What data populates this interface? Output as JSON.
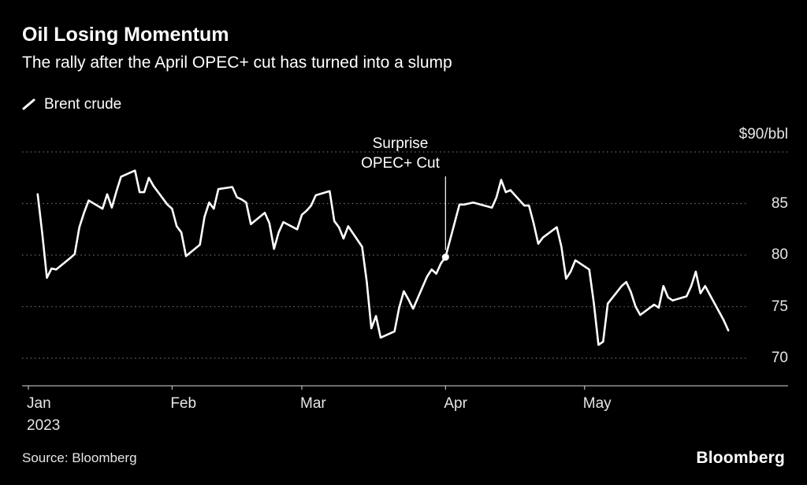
{
  "header": {
    "title": "Oil Losing Momentum",
    "subtitle": "The rally after the April OPEC+ cut has turned into a slump"
  },
  "footer": {
    "source": "Source: Bloomberg",
    "brand": "Bloomberg"
  },
  "chart_data": {
    "type": "line",
    "title": "Oil Losing Momentum",
    "subtitle": "The rally after the April OPEC+ cut has turned into a slump",
    "unit_label": "$90/bbl",
    "ylabel": "$/bbl",
    "year_label": "2023",
    "ylim": [
      70,
      90
    ],
    "xlim_days": [
      0,
      152
    ],
    "x_unit": "day_of_year_2023",
    "grid": "dotted-horizontal",
    "legend_position": "top-left",
    "y_gridlines": [
      90,
      85,
      80,
      75,
      70
    ],
    "y_ticks": [
      {
        "value": 85,
        "label": "85"
      },
      {
        "value": 80,
        "label": "80"
      },
      {
        "value": 75,
        "label": "75"
      },
      {
        "value": 70,
        "label": "70"
      }
    ],
    "x_ticks": [
      {
        "day": 0,
        "label": "Jan"
      },
      {
        "day": 31,
        "label": "Feb"
      },
      {
        "day": 59,
        "label": "Mar"
      },
      {
        "day": 90,
        "label": "Apr"
      },
      {
        "day": 120,
        "label": "May"
      }
    ],
    "annotation": {
      "label_line1": "Surprise",
      "label_line2": "OPEC+ Cut",
      "day": 90,
      "value": 79.8
    },
    "series": [
      {
        "name": "Brent crude",
        "points": [
          [
            2,
            85.9
          ],
          [
            3,
            82.1
          ],
          [
            4,
            77.8
          ],
          [
            5,
            78.7
          ],
          [
            6,
            78.6
          ],
          [
            9,
            79.7
          ],
          [
            10,
            80.1
          ],
          [
            11,
            82.7
          ],
          [
            12,
            84.1
          ],
          [
            13,
            85.3
          ],
          [
            16,
            84.5
          ],
          [
            17,
            85.9
          ],
          [
            18,
            84.6
          ],
          [
            19,
            86.2
          ],
          [
            20,
            87.6
          ],
          [
            23,
            88.2
          ],
          [
            24,
            86.1
          ],
          [
            25,
            86.1
          ],
          [
            26,
            87.5
          ],
          [
            27,
            86.7
          ],
          [
            30,
            84.9
          ],
          [
            31,
            84.5
          ],
          [
            32,
            82.8
          ],
          [
            33,
            82.2
          ],
          [
            34,
            79.9
          ],
          [
            37,
            81.0
          ],
          [
            38,
            83.7
          ],
          [
            39,
            85.1
          ],
          [
            40,
            84.5
          ],
          [
            41,
            86.4
          ],
          [
            44,
            86.6
          ],
          [
            45,
            85.6
          ],
          [
            46,
            85.4
          ],
          [
            47,
            85.1
          ],
          [
            48,
            83.0
          ],
          [
            51,
            84.1
          ],
          [
            52,
            83.1
          ],
          [
            53,
            80.6
          ],
          [
            54,
            82.2
          ],
          [
            55,
            83.2
          ],
          [
            58,
            82.5
          ],
          [
            59,
            83.9
          ],
          [
            60,
            84.3
          ],
          [
            61,
            84.8
          ],
          [
            62,
            85.8
          ],
          [
            65,
            86.2
          ],
          [
            66,
            83.3
          ],
          [
            67,
            82.7
          ],
          [
            68,
            81.6
          ],
          [
            69,
            82.8
          ],
          [
            72,
            80.8
          ],
          [
            73,
            77.4
          ],
          [
            74,
            72.9
          ],
          [
            75,
            74.1
          ],
          [
            76,
            72.0
          ],
          [
            79,
            72.6
          ],
          [
            80,
            74.9
          ],
          [
            81,
            76.5
          ],
          [
            82,
            75.7
          ],
          [
            83,
            74.8
          ],
          [
            86,
            77.9
          ],
          [
            87,
            78.6
          ],
          [
            88,
            78.2
          ],
          [
            89,
            79.2
          ],
          [
            90,
            79.8
          ],
          [
            93,
            84.9
          ],
          [
            94,
            84.9
          ],
          [
            95,
            85.0
          ],
          [
            96,
            85.1
          ],
          [
            100,
            84.6
          ],
          [
            101,
            85.6
          ],
          [
            102,
            87.3
          ],
          [
            103,
            86.1
          ],
          [
            104,
            86.3
          ],
          [
            107,
            84.8
          ],
          [
            108,
            84.8
          ],
          [
            109,
            83.1
          ],
          [
            110,
            81.1
          ],
          [
            111,
            81.7
          ],
          [
            114,
            82.7
          ],
          [
            115,
            80.8
          ],
          [
            116,
            77.7
          ],
          [
            117,
            78.4
          ],
          [
            118,
            79.5
          ],
          [
            121,
            78.6
          ],
          [
            122,
            75.3
          ],
          [
            123,
            71.3
          ],
          [
            124,
            71.6
          ],
          [
            125,
            75.3
          ],
          [
            128,
            77.0
          ],
          [
            129,
            77.4
          ],
          [
            130,
            76.4
          ],
          [
            131,
            75.0
          ],
          [
            132,
            74.2
          ],
          [
            135,
            75.2
          ],
          [
            136,
            74.9
          ],
          [
            137,
            77.0
          ],
          [
            138,
            75.9
          ],
          [
            139,
            75.6
          ],
          [
            142,
            76.0
          ],
          [
            143,
            77.0
          ],
          [
            144,
            78.4
          ],
          [
            145,
            76.3
          ],
          [
            146,
            77.0
          ],
          [
            150,
            73.7
          ],
          [
            151,
            72.7
          ]
        ]
      }
    ],
    "colors": {
      "background": "#000000",
      "line": "#ffffff",
      "grid": "#6b6b6b",
      "axis": "#d9d9d9",
      "label": "#e6e6e6"
    }
  }
}
